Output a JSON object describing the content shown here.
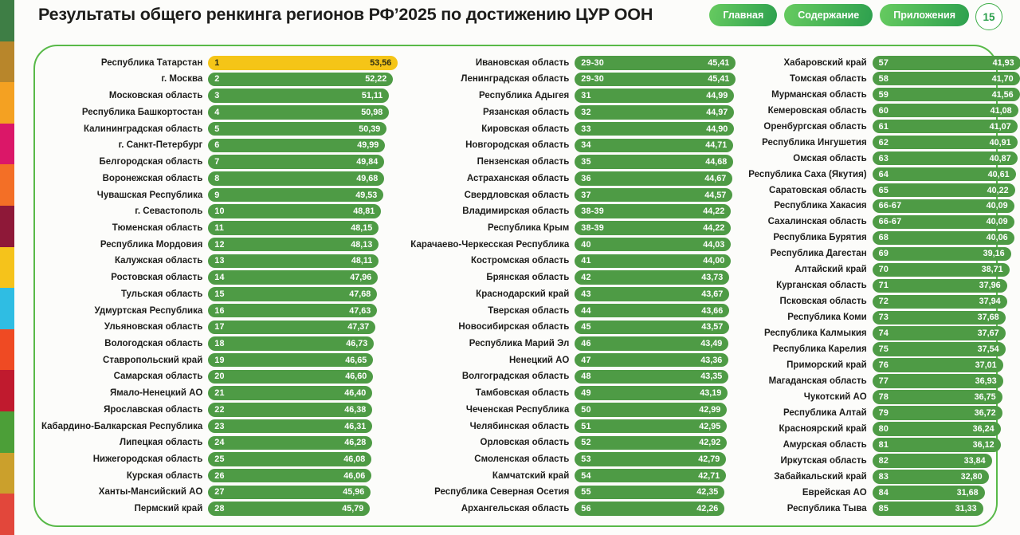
{
  "header": {
    "title": "Результаты общего ренкинга регионов РФ’2025 по достижению ЦУР ООН",
    "nav_buttons": [
      {
        "label": "Главная"
      },
      {
        "label": "Содержание"
      },
      {
        "label": "Приложения"
      }
    ],
    "page_number": "15"
  },
  "colors": {
    "bar_green": "#4e9b45",
    "bar_gold": "#f5c517",
    "board_border": "#58b948",
    "strip": [
      "#3E7E45",
      "#B8862B",
      "#F4A122",
      "#DB1768",
      "#F36F26",
      "#8E1838",
      "#F5C31B",
      "#2FBDE3",
      "#EF4A23",
      "#C01A2E",
      "#4C9F38",
      "#CBA02C",
      "#E2473B"
    ]
  },
  "chart_data": {
    "type": "bar",
    "title": "Результаты общего ренкинга регионов РФ’2025 по достижению ЦУР ООН",
    "orientation": "horizontal",
    "value_range": [
      0,
      53.56
    ],
    "max_value": 53.56,
    "columns": [
      {
        "rows": [
          {
            "region": "Республика Татарстан",
            "rank": "1",
            "score": "53,56",
            "highlight": true
          },
          {
            "region": "г. Москва",
            "rank": "2",
            "score": "52,22"
          },
          {
            "region": "Московская область",
            "rank": "3",
            "score": "51,11"
          },
          {
            "region": "Республика Башкортостан",
            "rank": "4",
            "score": "50,98"
          },
          {
            "region": "Калининградская область",
            "rank": "5",
            "score": "50,39"
          },
          {
            "region": "г. Санкт-Петербург",
            "rank": "6",
            "score": "49,99"
          },
          {
            "region": "Белгородская область",
            "rank": "7",
            "score": "49,84"
          },
          {
            "region": "Воронежская область",
            "rank": "8",
            "score": "49,68"
          },
          {
            "region": "Чувашская Республика",
            "rank": "9",
            "score": "49,53"
          },
          {
            "region": "г. Севастополь",
            "rank": "10",
            "score": "48,81"
          },
          {
            "region": "Тюменская область",
            "rank": "11",
            "score": "48,15"
          },
          {
            "region": "Республика Мордовия",
            "rank": "12",
            "score": "48,13"
          },
          {
            "region": "Калужская область",
            "rank": "13",
            "score": "48,11"
          },
          {
            "region": "Ростовская область",
            "rank": "14",
            "score": "47,96"
          },
          {
            "region": "Тульская область",
            "rank": "15",
            "score": "47,68"
          },
          {
            "region": "Удмуртская Республика",
            "rank": "16",
            "score": "47,63"
          },
          {
            "region": "Ульяновская область",
            "rank": "17",
            "score": "47,37"
          },
          {
            "region": "Вологодская область",
            "rank": "18",
            "score": "46,73"
          },
          {
            "region": "Ставропольский край",
            "rank": "19",
            "score": "46,65"
          },
          {
            "region": "Самарская область",
            "rank": "20",
            "score": "46,60"
          },
          {
            "region": "Ямало-Ненецкий АО",
            "rank": "21",
            "score": "46,40"
          },
          {
            "region": "Ярославская область",
            "rank": "22",
            "score": "46,38"
          },
          {
            "region": "Кабардино-Балкарская Республика",
            "rank": "23",
            "score": "46,31"
          },
          {
            "region": "Липецкая область",
            "rank": "24",
            "score": "46,28"
          },
          {
            "region": "Нижегородская область",
            "rank": "25",
            "score": "46,08"
          },
          {
            "region": "Курская область",
            "rank": "26",
            "score": "46,06"
          },
          {
            "region": "Ханты-Мансийский АО",
            "rank": "27",
            "score": "45,96"
          },
          {
            "region": "Пермский край",
            "rank": "28",
            "score": "45,79"
          }
        ]
      },
      {
        "rows": [
          {
            "region": "Ивановская область",
            "rank": "29-30",
            "score": "45,41"
          },
          {
            "region": "Ленинградская область",
            "rank": "29-30",
            "score": "45,41"
          },
          {
            "region": "Республика Адыгея",
            "rank": "31",
            "score": "44,99"
          },
          {
            "region": "Рязанская область",
            "rank": "32",
            "score": "44,97"
          },
          {
            "region": "Кировская область",
            "rank": "33",
            "score": "44,90"
          },
          {
            "region": "Новгородская область",
            "rank": "34",
            "score": "44,71"
          },
          {
            "region": "Пензенская область",
            "rank": "35",
            "score": "44,68"
          },
          {
            "region": "Астраханская область",
            "rank": "36",
            "score": "44,67"
          },
          {
            "region": "Свердловская область",
            "rank": "37",
            "score": "44,57"
          },
          {
            "region": "Владимирская область",
            "rank": "38-39",
            "score": "44,22"
          },
          {
            "region": "Республика Крым",
            "rank": "38-39",
            "score": "44,22"
          },
          {
            "region": "Карачаево-Черкесская Республика",
            "rank": "40",
            "score": "44,03"
          },
          {
            "region": "Костромская область",
            "rank": "41",
            "score": "44,00"
          },
          {
            "region": "Брянская область",
            "rank": "42",
            "score": "43,73"
          },
          {
            "region": "Краснодарский край",
            "rank": "43",
            "score": "43,67"
          },
          {
            "region": "Тверская область",
            "rank": "44",
            "score": "43,66"
          },
          {
            "region": "Новосибирская область",
            "rank": "45",
            "score": "43,57"
          },
          {
            "region": "Республика Марий Эл",
            "rank": "46",
            "score": "43,49"
          },
          {
            "region": "Ненецкий АО",
            "rank": "47",
            "score": "43,36"
          },
          {
            "region": "Волгоградская область",
            "rank": "48",
            "score": "43,35"
          },
          {
            "region": "Тамбовская область",
            "rank": "49",
            "score": "43,19"
          },
          {
            "region": "Чеченская Республика",
            "rank": "50",
            "score": "42,99"
          },
          {
            "region": "Челябинская область",
            "rank": "51",
            "score": "42,95"
          },
          {
            "region": "Орловская область",
            "rank": "52",
            "score": "42,92"
          },
          {
            "region": "Смоленская область",
            "rank": "53",
            "score": "42,79"
          },
          {
            "region": "Камчатский край",
            "rank": "54",
            "score": "42,71"
          },
          {
            "region": "Республика Северная Осетия",
            "rank": "55",
            "score": "42,35"
          },
          {
            "region": "Архангельская область",
            "rank": "56",
            "score": "42,26"
          }
        ]
      },
      {
        "rows": [
          {
            "region": "Хабаровский край",
            "rank": "57",
            "score": "41,93"
          },
          {
            "region": "Томская область",
            "rank": "58",
            "score": "41,70"
          },
          {
            "region": "Мурманская область",
            "rank": "59",
            "score": "41,56"
          },
          {
            "region": "Кемеровская область",
            "rank": "60",
            "score": "41,08"
          },
          {
            "region": "Оренбургская область",
            "rank": "61",
            "score": "41,07"
          },
          {
            "region": "Республика Ингушетия",
            "rank": "62",
            "score": "40,91"
          },
          {
            "region": "Омская область",
            "rank": "63",
            "score": "40,87"
          },
          {
            "region": "Республика Саха (Якутия)",
            "rank": "64",
            "score": "40,61"
          },
          {
            "region": "Саратовская область",
            "rank": "65",
            "score": "40,22"
          },
          {
            "region": "Республика Хакасия",
            "rank": "66-67",
            "score": "40,09"
          },
          {
            "region": "Сахалинская область",
            "rank": "66-67",
            "score": "40,09"
          },
          {
            "region": "Республика Бурятия",
            "rank": "68",
            "score": "40,06"
          },
          {
            "region": "Республика Дагестан",
            "rank": "69",
            "score": "39,16"
          },
          {
            "region": "Алтайский край",
            "rank": "70",
            "score": "38,71"
          },
          {
            "region": "Курганская область",
            "rank": "71",
            "score": "37,96"
          },
          {
            "region": "Псковская область",
            "rank": "72",
            "score": "37,94"
          },
          {
            "region": "Республика Коми",
            "rank": "73",
            "score": "37,68"
          },
          {
            "region": "Республика Калмыкия",
            "rank": "74",
            "score": "37,67"
          },
          {
            "region": "Республика Карелия",
            "rank": "75",
            "score": "37,54"
          },
          {
            "region": "Приморский край",
            "rank": "76",
            "score": "37,01"
          },
          {
            "region": "Магаданская область",
            "rank": "77",
            "score": "36,93"
          },
          {
            "region": "Чукотский АО",
            "rank": "78",
            "score": "36,75"
          },
          {
            "region": "Республика Алтай",
            "rank": "79",
            "score": "36,72"
          },
          {
            "region": "Красноярский край",
            "rank": "80",
            "score": "36,24"
          },
          {
            "region": "Амурская область",
            "rank": "81",
            "score": "36,12"
          },
          {
            "region": "Иркутская область",
            "rank": "82",
            "score": "33,84"
          },
          {
            "region": "Забайкальский край",
            "rank": "83",
            "score": "32,80"
          },
          {
            "region": "Еврейская АО",
            "rank": "84",
            "score": "31,68"
          },
          {
            "region": "Республика Тыва",
            "rank": "85",
            "score": "31,33"
          }
        ]
      }
    ]
  }
}
